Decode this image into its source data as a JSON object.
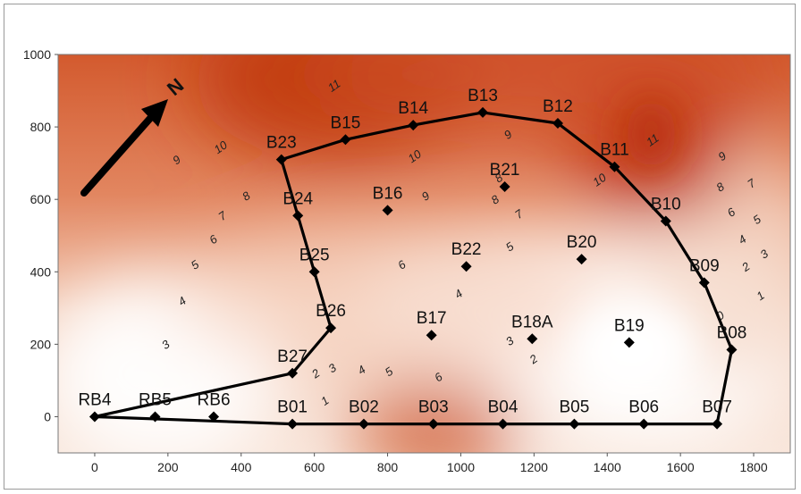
{
  "chart_data": {
    "type": "scatter",
    "xlim": [
      -100,
      1900
    ],
    "ylim": [
      -100,
      1000
    ],
    "x_ticks": [
      0,
      200,
      400,
      600,
      800,
      1000,
      1200,
      1400,
      1600,
      1800
    ],
    "y_ticks": [
      0,
      200,
      400,
      600,
      800,
      1000
    ],
    "north_label": "N",
    "colors": {
      "high": "#c9451a",
      "low": "#ffffff",
      "line": "#000000"
    },
    "stations": [
      {
        "name": "RB4",
        "x": 0,
        "y": 0
      },
      {
        "name": "RB5",
        "x": 165,
        "y": 0
      },
      {
        "name": "RB6",
        "x": 325,
        "y": 0
      },
      {
        "name": "B01",
        "x": 540,
        "y": -20
      },
      {
        "name": "B02",
        "x": 735,
        "y": -20
      },
      {
        "name": "B03",
        "x": 925,
        "y": -20
      },
      {
        "name": "B04",
        "x": 1115,
        "y": -20
      },
      {
        "name": "B05",
        "x": 1310,
        "y": -20
      },
      {
        "name": "B06",
        "x": 1500,
        "y": -20
      },
      {
        "name": "B07",
        "x": 1700,
        "y": -20
      },
      {
        "name": "B08",
        "x": 1740,
        "y": 185
      },
      {
        "name": "B09",
        "x": 1665,
        "y": 370
      },
      {
        "name": "B10",
        "x": 1560,
        "y": 540
      },
      {
        "name": "B11",
        "x": 1420,
        "y": 690
      },
      {
        "name": "B12",
        "x": 1265,
        "y": 810
      },
      {
        "name": "B13",
        "x": 1060,
        "y": 840
      },
      {
        "name": "B14",
        "x": 870,
        "y": 805
      },
      {
        "name": "B15",
        "x": 685,
        "y": 765
      },
      {
        "name": "B23",
        "x": 510,
        "y": 710
      },
      {
        "name": "B24",
        "x": 555,
        "y": 555
      },
      {
        "name": "B25",
        "x": 600,
        "y": 400
      },
      {
        "name": "B26",
        "x": 645,
        "y": 245
      },
      {
        "name": "B27",
        "x": 540,
        "y": 120
      },
      {
        "name": "B16",
        "x": 800,
        "y": 570
      },
      {
        "name": "B21",
        "x": 1120,
        "y": 635
      },
      {
        "name": "B22",
        "x": 1015,
        "y": 415
      },
      {
        "name": "B20",
        "x": 1330,
        "y": 435
      },
      {
        "name": "B17",
        "x": 920,
        "y": 225
      },
      {
        "name": "B18A",
        "x": 1195,
        "y": 215
      },
      {
        "name": "B19",
        "x": 1460,
        "y": 205
      }
    ],
    "boundary": [
      "RB4",
      "B01",
      "B02",
      "B03",
      "B04",
      "B05",
      "B06",
      "B07",
      "B08",
      "B09",
      "B10",
      "B11",
      "B12",
      "B13",
      "B14",
      "B15",
      "B23",
      "B24",
      "B25",
      "B26",
      "B27",
      "RB4"
    ],
    "contour_labels": [
      {
        "text": "11",
        "x": 660,
        "y": 905
      },
      {
        "text": "10",
        "x": 350,
        "y": 735
      },
      {
        "text": "9",
        "x": 230,
        "y": 700
      },
      {
        "text": "8",
        "x": 420,
        "y": 600
      },
      {
        "text": "7",
        "x": 355,
        "y": 545
      },
      {
        "text": "6",
        "x": 330,
        "y": 480
      },
      {
        "text": "5",
        "x": 280,
        "y": 410
      },
      {
        "text": "4",
        "x": 245,
        "y": 310
      },
      {
        "text": "3",
        "x": 200,
        "y": 190
      },
      {
        "text": "10",
        "x": 880,
        "y": 710
      },
      {
        "text": "9",
        "x": 910,
        "y": 600
      },
      {
        "text": "6",
        "x": 845,
        "y": 410
      },
      {
        "text": "9",
        "x": 1135,
        "y": 770
      },
      {
        "text": "8",
        "x": 1110,
        "y": 650
      },
      {
        "text": "8",
        "x": 1100,
        "y": 590
      },
      {
        "text": "7",
        "x": 1165,
        "y": 550
      },
      {
        "text": "5",
        "x": 1140,
        "y": 460
      },
      {
        "text": "4",
        "x": 1000,
        "y": 330
      },
      {
        "text": "10",
        "x": 1385,
        "y": 645
      },
      {
        "text": "11",
        "x": 1530,
        "y": 755
      },
      {
        "text": "9",
        "x": 1720,
        "y": 710
      },
      {
        "text": "8",
        "x": 1715,
        "y": 625
      },
      {
        "text": "7",
        "x": 1800,
        "y": 635
      },
      {
        "text": "6",
        "x": 1745,
        "y": 555
      },
      {
        "text": "5",
        "x": 1815,
        "y": 535
      },
      {
        "text": "4",
        "x": 1775,
        "y": 480
      },
      {
        "text": "3",
        "x": 1835,
        "y": 440
      },
      {
        "text": "2",
        "x": 1785,
        "y": 405
      },
      {
        "text": "1",
        "x": 1825,
        "y": 325
      },
      {
        "text": "0",
        "x": 1715,
        "y": 270
      },
      {
        "text": "3",
        "x": 1140,
        "y": 200
      },
      {
        "text": "2",
        "x": 1205,
        "y": 150
      },
      {
        "text": "3",
        "x": 655,
        "y": 125
      },
      {
        "text": "2",
        "x": 610,
        "y": 110
      },
      {
        "text": "4",
        "x": 735,
        "y": 120
      },
      {
        "text": "5",
        "x": 810,
        "y": 115
      },
      {
        "text": "6",
        "x": 945,
        "y": 100
      },
      {
        "text": "1",
        "x": 635,
        "y": 35
      }
    ]
  }
}
